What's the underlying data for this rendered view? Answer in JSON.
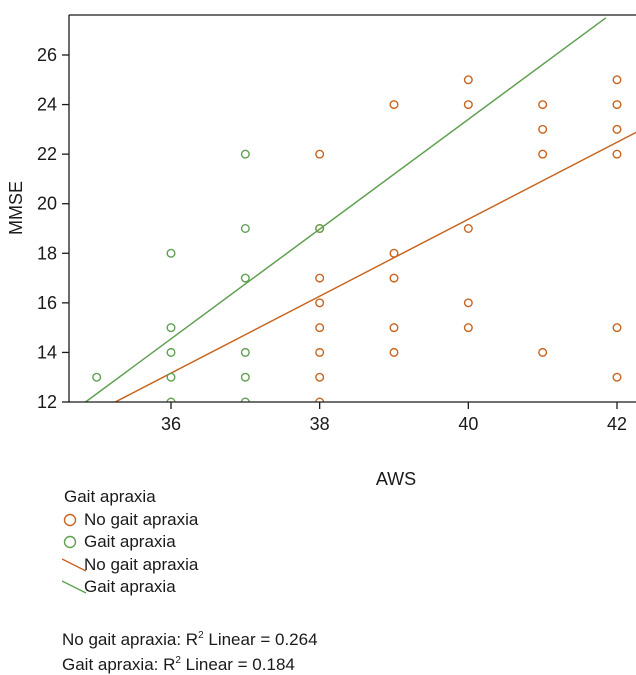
{
  "chart_data": {
    "type": "scatter",
    "xlabel": "AWS",
    "ylabel": "MMSE",
    "xlim": [
      34.7,
      42.4
    ],
    "ylim": [
      12,
      27.5
    ],
    "xticks": [
      36,
      38,
      40,
      42
    ],
    "yticks": [
      12,
      14,
      16,
      18,
      20,
      22,
      24,
      26
    ],
    "grid": false,
    "legend": {
      "title": "Gait apraxia",
      "placement": "bottom-left",
      "items": [
        {
          "label": "No gait apraxia",
          "kind": "marker",
          "color": "#c8641e"
        },
        {
          "label": "Gait apraxia",
          "kind": "marker",
          "color": "#5fa052"
        },
        {
          "label": "No gait apraxia",
          "kind": "line",
          "color": "#c8641e"
        },
        {
          "label": "Gait apraxia",
          "kind": "line",
          "color": "#5fa052"
        }
      ]
    },
    "series": [
      {
        "name": "No gait apraxia",
        "color": "#c8641e",
        "points": [
          [
            38,
            22
          ],
          [
            38,
            19
          ],
          [
            38,
            17
          ],
          [
            38,
            16
          ],
          [
            38,
            15
          ],
          [
            38,
            14
          ],
          [
            38,
            13
          ],
          [
            38,
            12
          ],
          [
            39,
            24
          ],
          [
            39,
            18
          ],
          [
            39,
            17
          ],
          [
            39,
            15
          ],
          [
            39,
            14
          ],
          [
            40,
            25
          ],
          [
            40,
            24
          ],
          [
            40,
            19
          ],
          [
            40,
            16
          ],
          [
            40,
            15
          ],
          [
            41,
            24
          ],
          [
            41,
            23
          ],
          [
            41,
            22
          ],
          [
            41,
            14
          ],
          [
            42,
            25
          ],
          [
            42,
            24
          ],
          [
            42,
            23
          ],
          [
            42,
            22
          ],
          [
            42,
            15
          ],
          [
            42,
            13
          ]
        ],
        "fit": {
          "x": [
            35.25,
            42.4
          ],
          "y": [
            12.0,
            23.1
          ]
        }
      },
      {
        "name": "Gait apraxia",
        "color": "#5fa052",
        "points": [
          [
            35,
            13
          ],
          [
            36,
            18
          ],
          [
            36,
            15
          ],
          [
            36,
            14
          ],
          [
            36,
            13
          ],
          [
            36,
            12
          ],
          [
            37,
            22
          ],
          [
            37,
            19
          ],
          [
            37,
            17
          ],
          [
            37,
            14
          ],
          [
            37,
            13
          ],
          [
            37,
            12
          ],
          [
            38,
            19
          ]
        ],
        "fit": {
          "x": [
            34.85,
            41.85
          ],
          "y": [
            12.0,
            27.5
          ]
        }
      }
    ],
    "fit_notes": [
      {
        "label": "No gait apraxia: R",
        "sup": "2",
        "rest": " Linear = 0.264"
      },
      {
        "label": "Gait apraxia: R",
        "sup": "2",
        "rest": " Linear = 0.184"
      }
    ]
  }
}
